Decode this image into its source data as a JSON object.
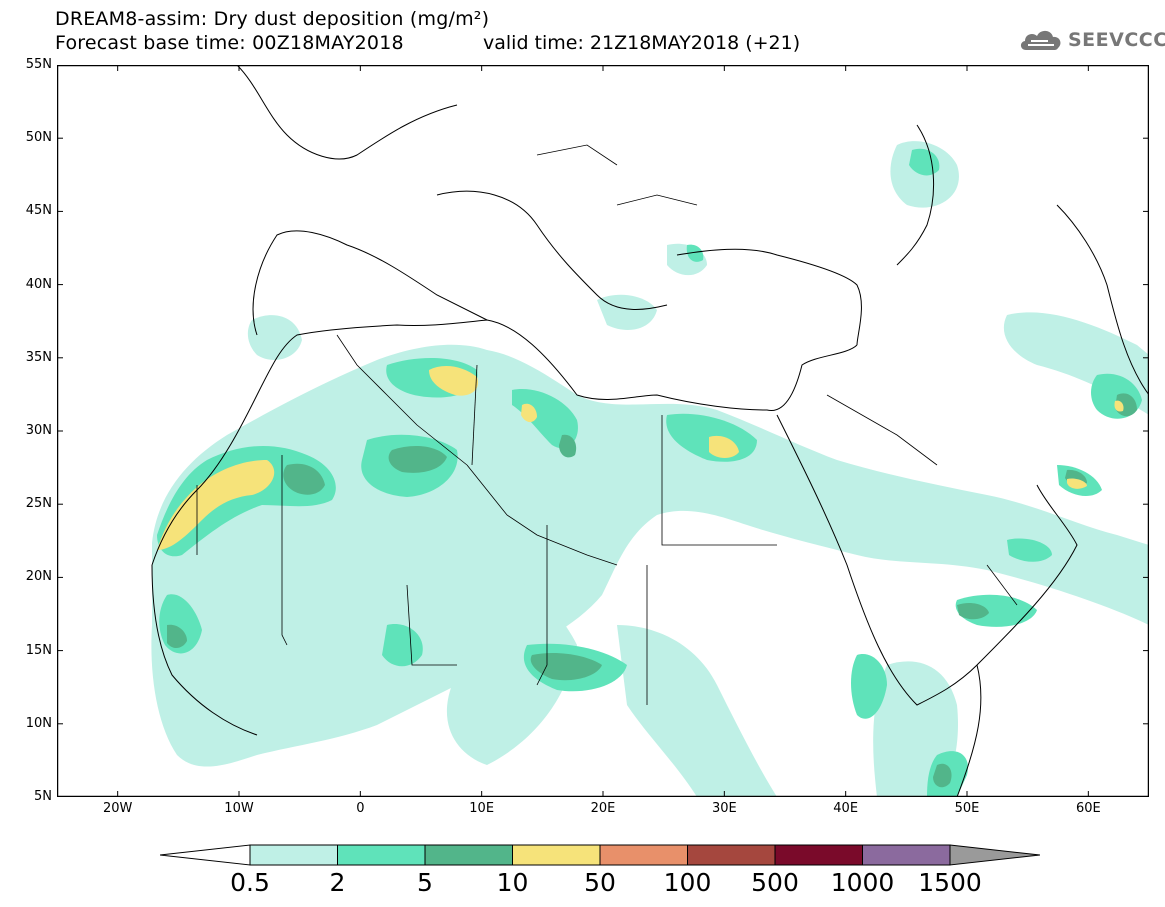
{
  "header": {
    "title_line1": "DREAM8-assim: Dry dust deposition (mg/m²)",
    "title_line2": "Forecast base time: 00Z18MAY2018",
    "valid_time": "valid time: 21Z18MAY2018 (+21)",
    "logo_text": "SEEVCCC",
    "logo_icon": "cloud-icon"
  },
  "axes": {
    "lat_labels": [
      "55N",
      "50N",
      "45N",
      "40N",
      "35N",
      "30N",
      "25N",
      "20N",
      "15N",
      "10N",
      "5N"
    ],
    "lon_labels": [
      "20W",
      "10W",
      "0",
      "10E",
      "20E",
      "30E",
      "40E",
      "50E",
      "60E"
    ],
    "lat_range": [
      5,
      55
    ],
    "lon_range": [
      -25,
      65
    ]
  },
  "legend": {
    "labels": [
      "0.5",
      "2",
      "5",
      "10",
      "50",
      "100",
      "500",
      "1000",
      "1500"
    ],
    "colors": [
      "#ffffff",
      "#bff0e6",
      "#5fe3ba",
      "#52b58a",
      "#f6e37a",
      "#e8906a",
      "#a5473e",
      "#7a0a2a",
      "#8b6a9e",
      "#9a9a9a"
    ]
  },
  "colors": {
    "level1": "#bff0e6",
    "level2": "#5fe3ba",
    "level3": "#52b58a",
    "level4": "#f6e37a",
    "level5": "#e8906a"
  }
}
